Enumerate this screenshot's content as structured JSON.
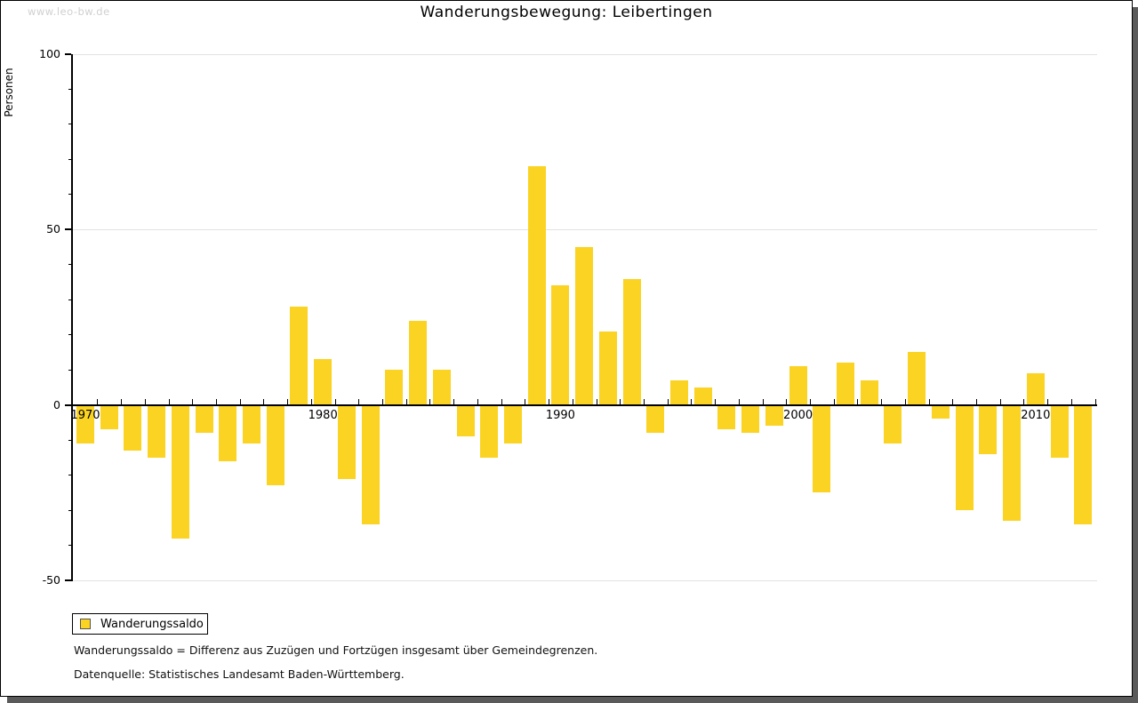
{
  "window": {
    "watermark": "www.leo-bw.de"
  },
  "chart_data": {
    "type": "bar",
    "title": "Wanderungsbewegung: Leibertingen",
    "ylabel": "Personen",
    "xlabel": "",
    "categories": [
      1970,
      1971,
      1972,
      1973,
      1974,
      1975,
      1976,
      1977,
      1978,
      1979,
      1980,
      1981,
      1982,
      1983,
      1984,
      1985,
      1986,
      1987,
      1988,
      1989,
      1990,
      1991,
      1992,
      1993,
      1994,
      1995,
      1996,
      1997,
      1998,
      1999,
      2000,
      2001,
      2002,
      2003,
      2004,
      2005,
      2006,
      2007,
      2008,
      2009,
      2010,
      2011,
      2012
    ],
    "values": [
      -11,
      -7,
      -13,
      -15,
      -38,
      -8,
      -16,
      -11,
      -23,
      28,
      13,
      -21,
      -34,
      10,
      24,
      10,
      -9,
      -15,
      -11,
      68,
      34,
      45,
      21,
      36,
      -8,
      7,
      5,
      -7,
      -8,
      -6,
      11,
      -25,
      12,
      7,
      -11,
      15,
      -4,
      -30,
      -14,
      -33,
      9,
      -15,
      -34
    ],
    "ylim": [
      -50,
      100
    ],
    "ytick_major": [
      100,
      50,
      0,
      -50
    ],
    "ytick_minor_step": 10,
    "xtick_labels": [
      "1970",
      "1980",
      "1990",
      "2000",
      "2010"
    ],
    "grid": "horizontal-major",
    "legend_position": "bottom-left",
    "legend": [
      "Wanderungssaldo"
    ],
    "bar_color": "#fbd323",
    "axis_color": "#000000",
    "grid_color": "#e2e2e2"
  },
  "legend": {
    "label": "Wanderungssaldo"
  },
  "footnotes": {
    "line1": "Wanderungssaldo = Differenz aus Zuzügen und Fortzügen insgesamt über Gemeindegrenzen.",
    "line2": "Datenquelle: Statistisches Landesamt Baden-Württemberg."
  }
}
